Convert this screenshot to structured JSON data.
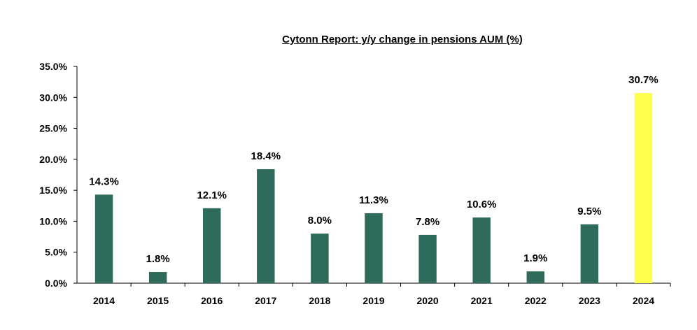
{
  "chart_data": {
    "type": "bar",
    "title": "Cytonn Report: y/y change in pensions AUM (%)",
    "xlabel": "",
    "ylabel": "",
    "categories": [
      "2014",
      "2015",
      "2016",
      "2017",
      "2018",
      "2019",
      "2020",
      "2021",
      "2022",
      "2023",
      "2024"
    ],
    "values": [
      14.3,
      1.8,
      12.1,
      18.4,
      8.0,
      11.3,
      7.8,
      10.6,
      1.9,
      9.5,
      30.7
    ],
    "data_labels": [
      "14.3%",
      "1.8%",
      "12.1%",
      "18.4%",
      "8.0%",
      "11.3%",
      "7.8%",
      "10.6%",
      "1.9%",
      "9.5%",
      "30.7%"
    ],
    "ylim": [
      0,
      35
    ],
    "yticks": [
      "0.0%",
      "5.0%",
      "10.0%",
      "15.0%",
      "20.0%",
      "25.0%",
      "30.0%",
      "35.0%"
    ],
    "grid": false,
    "legend": "none",
    "colors": {
      "bar": "#2e6b5a",
      "highlight_bar": "#ffff4d",
      "highlight_category": "2024",
      "axis": "#000000"
    }
  }
}
